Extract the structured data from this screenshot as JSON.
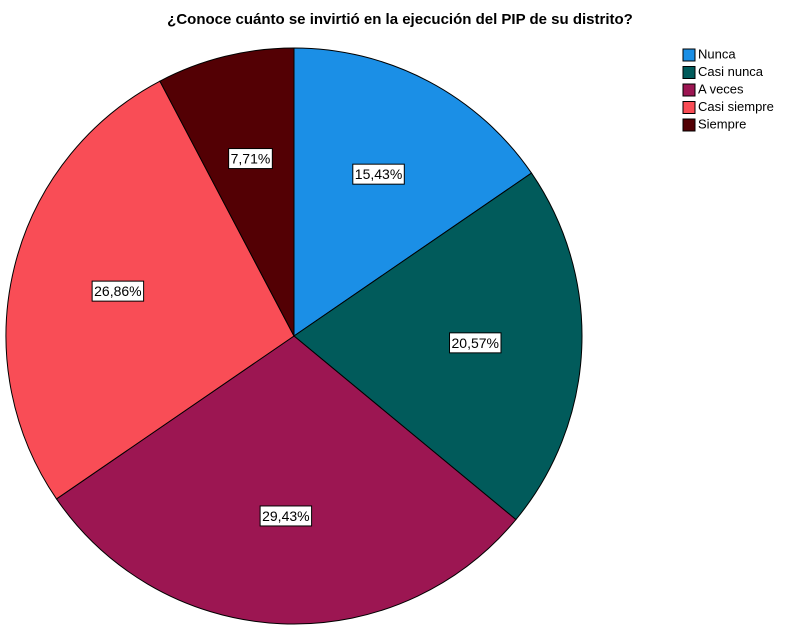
{
  "chart_data": {
    "type": "pie",
    "title": "¿Conoce cuánto se invirtió en la ejecución del PIP de su distrito?",
    "categories": [
      "Nunca",
      "Casi nunca",
      "A veces",
      "Casi siempre",
      "Siempre"
    ],
    "values": [
      15.43,
      20.57,
      29.43,
      26.86,
      7.71
    ],
    "value_labels": [
      "15,43%",
      "20,57%",
      "29,43%",
      "26,86%",
      "7,71%"
    ],
    "colors": [
      "#1b8fe6",
      "#015b5b",
      "#9c1652",
      "#f94d56",
      "#530004"
    ],
    "legend": "right"
  }
}
